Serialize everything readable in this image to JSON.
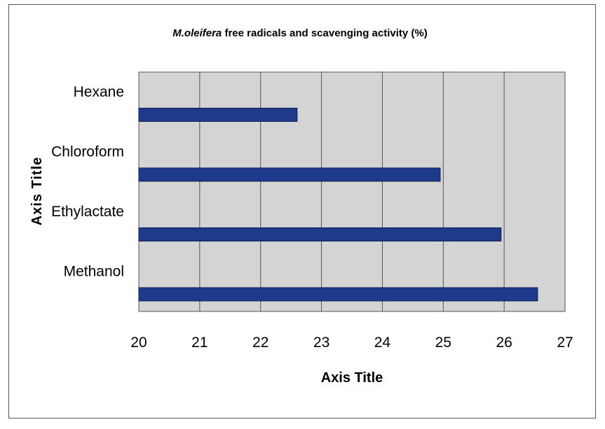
{
  "chart_data": {
    "type": "bar",
    "orientation": "horizontal",
    "title_italic": "M.oleifera",
    "title_rest": " free radicals and scavenging activity (%)",
    "categories": [
      "Hexane",
      "Chloroform",
      "Ethylactate",
      "Methanol"
    ],
    "values": [
      22.6,
      24.95,
      25.95,
      26.55
    ],
    "xlabel": "Axis Title",
    "ylabel": "Axis Title",
    "xlim": [
      20,
      27
    ],
    "xticks": [
      "20",
      "21",
      "22",
      "23",
      "24",
      "25",
      "26",
      "27"
    ],
    "grid": true,
    "legend": "none",
    "colors": {
      "bar": "#1f3a8a",
      "bar_edge": "#0d1f55",
      "plot_bg": "#d4d4d4",
      "grid": "#555555"
    }
  }
}
